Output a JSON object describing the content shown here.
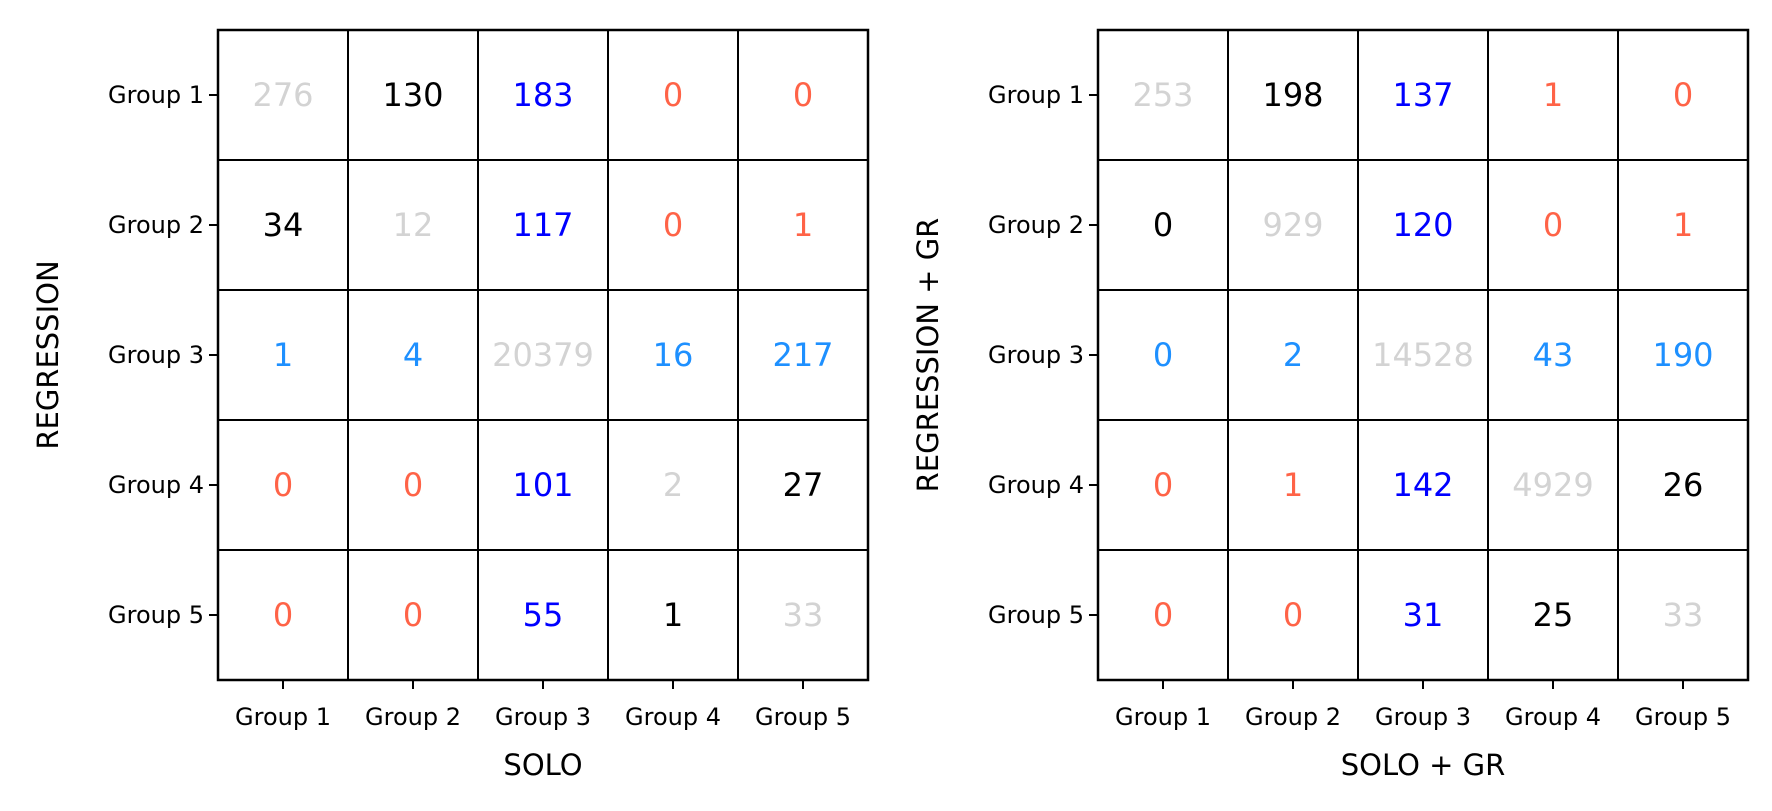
{
  "colors": {
    "diagonal": "#d3d3d3",
    "blue": "#0000ff",
    "dodgerblue": "#1e90ff",
    "tomato": "#ff6347",
    "black": "#000000"
  },
  "chart_data": [
    {
      "type": "heatmap",
      "xlabel": "SOLO",
      "ylabel": "REGRESSION",
      "x_categories": [
        "Group 1",
        "Group 2",
        "Group 3",
        "Group 4",
        "Group 5"
      ],
      "y_categories": [
        "Group 1",
        "Group 2",
        "Group 3",
        "Group 4",
        "Group 5"
      ],
      "values": [
        [
          276,
          130,
          183,
          0,
          0
        ],
        [
          34,
          12,
          117,
          0,
          1
        ],
        [
          1,
          4,
          20379,
          16,
          217
        ],
        [
          0,
          0,
          101,
          2,
          27
        ],
        [
          0,
          0,
          55,
          1,
          33
        ]
      ],
      "cell_colors": [
        [
          "diagonal",
          "black",
          "blue",
          "tomato",
          "tomato"
        ],
        [
          "black",
          "diagonal",
          "blue",
          "tomato",
          "tomato"
        ],
        [
          "dodgerblue",
          "dodgerblue",
          "diagonal",
          "dodgerblue",
          "dodgerblue"
        ],
        [
          "tomato",
          "tomato",
          "blue",
          "diagonal",
          "black"
        ],
        [
          "tomato",
          "tomato",
          "blue",
          "black",
          "diagonal"
        ]
      ]
    },
    {
      "type": "heatmap",
      "xlabel": "SOLO + GR",
      "ylabel": "REGRESSION + GR",
      "x_categories": [
        "Group 1",
        "Group 2",
        "Group 3",
        "Group 4",
        "Group 5"
      ],
      "y_categories": [
        "Group 1",
        "Group 2",
        "Group 3",
        "Group 4",
        "Group 5"
      ],
      "values": [
        [
          253,
          198,
          137,
          1,
          0
        ],
        [
          0,
          929,
          120,
          0,
          1
        ],
        [
          0,
          2,
          14528,
          43,
          190
        ],
        [
          0,
          1,
          142,
          4929,
          26
        ],
        [
          0,
          0,
          31,
          25,
          33
        ]
      ],
      "cell_colors": [
        [
          "diagonal",
          "black",
          "blue",
          "tomato",
          "tomato"
        ],
        [
          "black",
          "diagonal",
          "blue",
          "tomato",
          "tomato"
        ],
        [
          "dodgerblue",
          "dodgerblue",
          "diagonal",
          "dodgerblue",
          "dodgerblue"
        ],
        [
          "tomato",
          "tomato",
          "blue",
          "diagonal",
          "black"
        ],
        [
          "tomato",
          "tomato",
          "blue",
          "black",
          "diagonal"
        ]
      ]
    }
  ]
}
